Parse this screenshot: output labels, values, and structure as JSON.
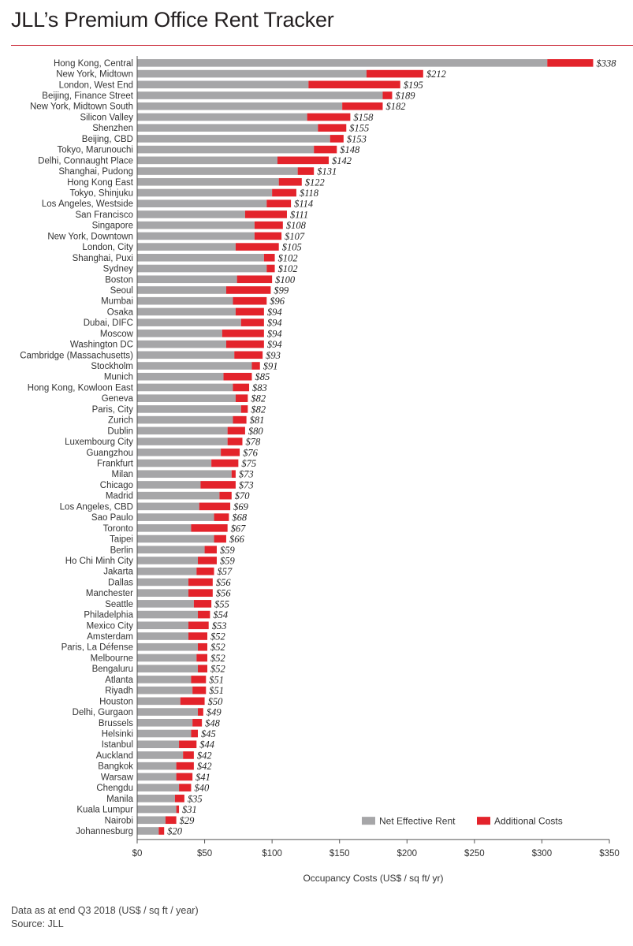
{
  "title": "JLL’s Premium Office Rent Tracker",
  "footnote": {
    "line1": "Data as at end Q3 2018 (US$ / sq ft / year)",
    "line2": "Source: JLL"
  },
  "colors": {
    "net_effective_rent": "#a6a6a8",
    "additional_costs": "#e3232b",
    "title_rule": "#c8202f"
  },
  "chart_data": {
    "type": "bar",
    "orientation": "horizontal",
    "stacked": true,
    "xlabel": "Occupancy Costs (US$ / sq ft/ yr)",
    "xlim": [
      0,
      350
    ],
    "xticks": [
      0,
      50,
      100,
      150,
      200,
      250,
      300,
      350
    ],
    "xtick_labels": [
      "$0",
      "$50",
      "$100",
      "$150",
      "$200",
      "$250",
      "$300",
      "$350"
    ],
    "legend_position": "bottom-right",
    "grid": false,
    "categories": [
      "Hong Kong, Central",
      "New York, Midtown",
      "London, West End",
      "Beijing, Finance Street",
      "New York, Midtown South",
      "Silicon Valley",
      "Shenzhen",
      "Beijing, CBD",
      "Tokyo, Marunouchi",
      "Delhi, Connaught Place",
      "Shanghai, Pudong",
      "Hong Kong East",
      "Tokyo, Shinjuku",
      "Los Angeles, Westside",
      "San Francisco",
      "Singapore",
      "New York, Downtown",
      "London, City",
      "Shanghai, Puxi",
      "Sydney",
      "Boston",
      "Seoul",
      "Mumbai",
      "Osaka",
      "Dubai, DIFC",
      "Moscow",
      "Washington DC",
      "Cambridge (Massachusetts)",
      "Stockholm",
      "Munich",
      "Hong Kong, Kowloon East",
      "Geneva",
      "Paris, City",
      "Zurich",
      "Dublin",
      "Luxembourg City",
      "Guangzhou",
      "Frankfurt",
      "Milan",
      "Chicago",
      "Madrid",
      "Los Angeles, CBD",
      "Sao Paulo",
      "Toronto",
      "Taipei",
      "Berlin",
      "Ho Chi Minh City",
      "Jakarta",
      "Dallas",
      "Manchester",
      "Seattle",
      "Philadelphia",
      "Mexico City",
      "Amsterdam",
      "Paris, La Défense",
      "Melbourne",
      "Bengaluru",
      "Atlanta",
      "Riyadh",
      "Houston",
      "Delhi, Gurgaon",
      "Brussels",
      "Helsinki",
      "Istanbul",
      "Auckland",
      "Bangkok",
      "Warsaw",
      "Chengdu",
      "Manila",
      "Kuala Lumpur",
      "Nairobi",
      "Johannesburg"
    ],
    "value_labels": [
      "$338",
      "$212",
      "$195",
      "$189",
      "$182",
      "$158",
      "$155",
      "$153",
      "$148",
      "$142",
      "$131",
      "$122",
      "$118",
      "$114",
      "$111",
      "$108",
      "$107",
      "$105",
      "$102",
      "$102",
      "$100",
      "$99",
      "$96",
      "$94",
      "$94",
      "$94",
      "$94",
      "$93",
      "$91",
      "$85",
      "$83",
      "$82",
      "$82",
      "$81",
      "$80",
      "$78",
      "$76",
      "$75",
      "$73",
      "$73",
      "$70",
      "$69",
      "$68",
      "$67",
      "$66",
      "$59",
      "$59",
      "$57",
      "$56",
      "$56",
      "$55",
      "$54",
      "$53",
      "$52",
      "$52",
      "$52",
      "$52",
      "$51",
      "$51",
      "$50",
      "$49",
      "$48",
      "$45",
      "$44",
      "$42",
      "$42",
      "$41",
      "$40",
      "$35",
      "$31",
      "$29",
      "$20"
    ],
    "series": [
      {
        "name": "Net Effective Rent",
        "values": [
          304,
          170,
          127,
          182,
          152,
          126,
          134,
          143,
          131,
          104,
          119,
          105,
          100,
          96,
          80,
          87,
          87,
          73,
          94,
          96,
          74,
          66,
          71,
          73,
          77,
          63,
          66,
          72,
          85,
          64,
          71,
          73,
          77,
          71,
          67,
          67,
          62,
          55,
          70,
          47,
          61,
          46,
          57,
          40,
          57,
          50,
          45,
          44,
          38,
          38,
          42,
          45,
          38,
          38,
          45,
          44,
          45,
          40,
          41,
          32,
          45,
          41,
          40,
          31,
          34,
          29,
          29,
          31,
          28,
          29,
          21,
          16
        ]
      },
      {
        "name": "Additional Costs",
        "values": [
          34,
          42,
          68,
          7,
          30,
          32,
          21,
          10,
          17,
          38,
          12,
          17,
          18,
          18,
          31,
          21,
          20,
          32,
          8,
          6,
          26,
          33,
          25,
          21,
          17,
          31,
          28,
          21,
          6,
          21,
          12,
          9,
          5,
          10,
          13,
          11,
          14,
          20,
          3,
          26,
          9,
          23,
          11,
          27,
          9,
          9,
          14,
          13,
          18,
          18,
          13,
          9,
          15,
          14,
          7,
          8,
          7,
          11,
          10,
          18,
          4,
          7,
          5,
          13,
          8,
          13,
          12,
          9,
          7,
          2,
          8,
          4
        ]
      }
    ]
  }
}
